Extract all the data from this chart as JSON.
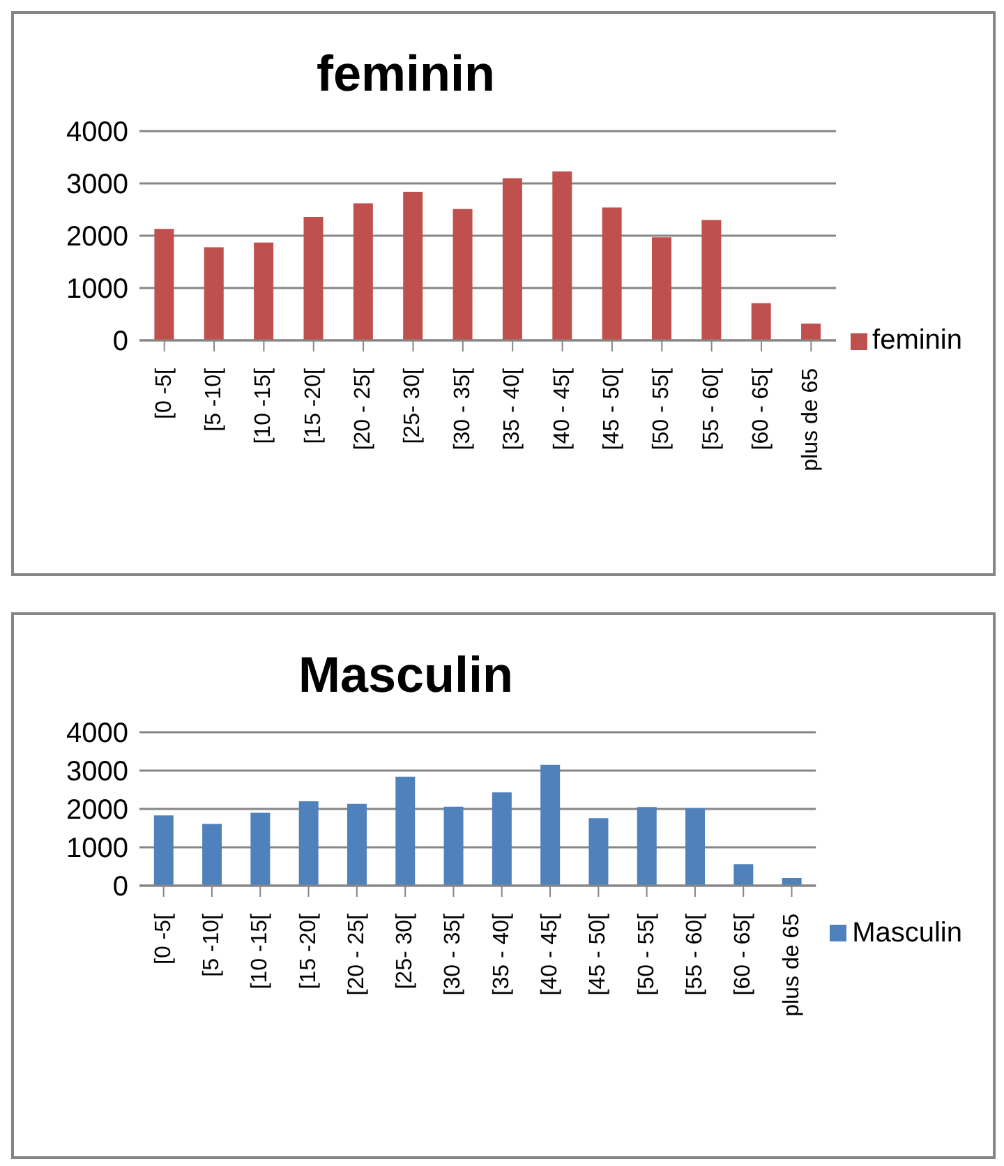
{
  "chart_data": [
    {
      "type": "bar",
      "title": "feminin",
      "categories": [
        "[0 -5[",
        "[5 -10[",
        "[10 -15[",
        "[15 -20[",
        "[20 - 25[",
        "[25- 30[",
        "[30 - 35[",
        "[35 - 40[",
        "[40 - 45[",
        "[45 - 50[",
        "[50 - 55[",
        "[55 - 60[",
        "[60 - 65[",
        "plus de 65"
      ],
      "series": [
        {
          "name": "feminin",
          "color": "#c0504d",
          "values": [
            2130,
            1780,
            1870,
            2360,
            2620,
            2840,
            2510,
            3100,
            3230,
            2540,
            1970,
            2300,
            710,
            320
          ]
        }
      ],
      "ylim": [
        0,
        4000
      ],
      "yticks": [
        0,
        1000,
        2000,
        3000,
        4000
      ],
      "grid": "y",
      "legend": "right"
    },
    {
      "type": "bar",
      "title": "Masculin",
      "categories": [
        "[0 -5[",
        "[5 -10[",
        "[10 -15[",
        "[15 -20[",
        "[20 - 25[",
        "[25- 30[",
        "[30 - 35[",
        "[35 - 40[",
        "[40 - 45[",
        "[45 - 50[",
        "[50 - 55[",
        "[55 - 60[",
        "[60 - 65[",
        "plus de 65"
      ],
      "series": [
        {
          "name": "Masculin",
          "color": "#4f81bd",
          "values": [
            1830,
            1610,
            1900,
            2200,
            2130,
            2840,
            2060,
            2430,
            3150,
            1760,
            2050,
            2020,
            560,
            200
          ]
        }
      ],
      "ylim": [
        0,
        4000
      ],
      "yticks": [
        0,
        1000,
        2000,
        3000,
        4000
      ],
      "grid": "y",
      "legend": "right"
    }
  ]
}
